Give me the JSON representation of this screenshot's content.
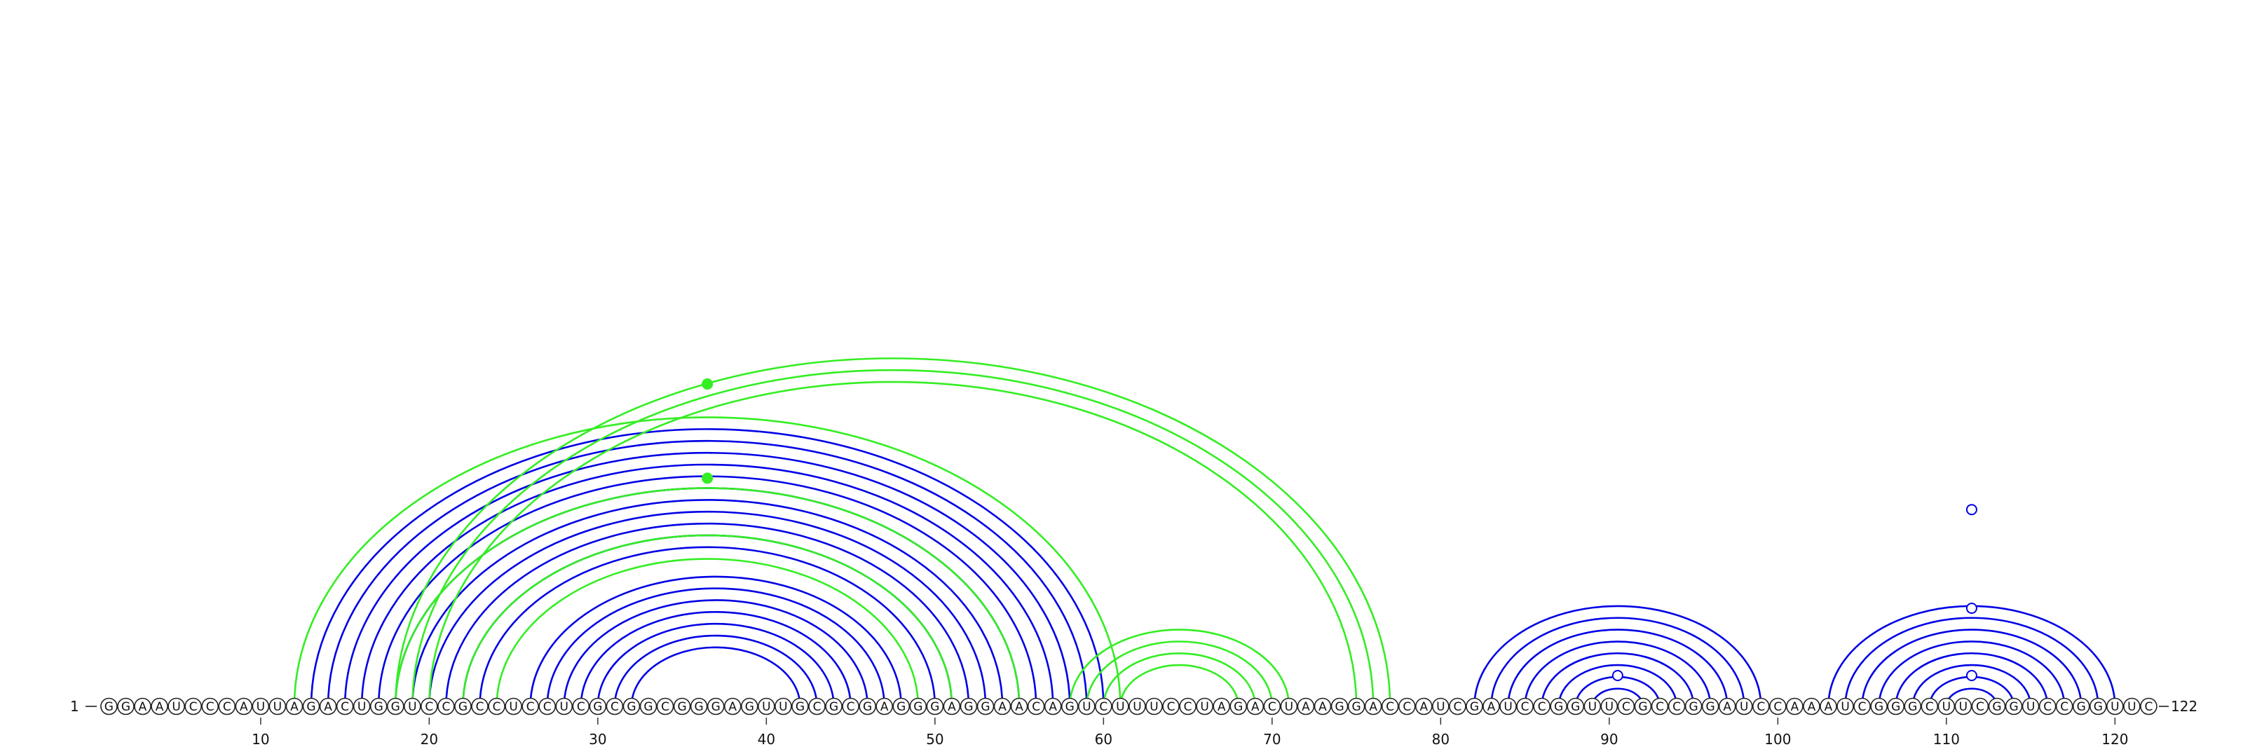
{
  "sequence": "GGAAUCCCAUUAGACUGGUCCGCCUCCUCGCGGCGGGAGUUGCGCGAGGGAGGAACAGUCUUUCCUAGACUAAGGACCAUCGAUCCGGUUCGCCGGAUCCAAAUCGGGCUUCGGUCCGGUUC",
  "start_label": "1",
  "end_label": "122",
  "ticks": [
    {
      "pos": 10,
      "label": "10"
    },
    {
      "pos": 20,
      "label": "20"
    },
    {
      "pos": 30,
      "label": "30"
    },
    {
      "pos": 40,
      "label": "40"
    },
    {
      "pos": 50,
      "label": "50"
    },
    {
      "pos": 60,
      "label": "60"
    },
    {
      "pos": 70,
      "label": "70"
    },
    {
      "pos": 80,
      "label": "80"
    },
    {
      "pos": 90,
      "label": "90"
    },
    {
      "pos": 100,
      "label": "100"
    },
    {
      "pos": 110,
      "label": "110"
    },
    {
      "pos": 120,
      "label": "120"
    }
  ],
  "colors": {
    "structure_a": "#0000e6",
    "structure_b": "#33ee22"
  },
  "arcs": [
    {
      "i": 13,
      "j": 60,
      "color": "structure_a"
    },
    {
      "i": 14,
      "j": 59,
      "color": "structure_a"
    },
    {
      "i": 15,
      "j": 58,
      "color": "structure_a"
    },
    {
      "i": 16,
      "j": 57,
      "color": "structure_a"
    },
    {
      "i": 17,
      "j": 56,
      "color": "structure_a"
    },
    {
      "i": 18,
      "j": 55,
      "color": "structure_a"
    },
    {
      "i": 19,
      "j": 54,
      "color": "structure_a"
    },
    {
      "i": 20,
      "j": 53,
      "color": "structure_a"
    },
    {
      "i": 21,
      "j": 52,
      "color": "structure_a"
    },
    {
      "i": 22,
      "j": 51,
      "color": "structure_a"
    },
    {
      "i": 23,
      "j": 50,
      "color": "structure_a"
    },
    {
      "i": 26,
      "j": 48,
      "color": "structure_a"
    },
    {
      "i": 27,
      "j": 47,
      "color": "structure_a"
    },
    {
      "i": 28,
      "j": 46,
      "color": "structure_a"
    },
    {
      "i": 29,
      "j": 45,
      "color": "structure_a"
    },
    {
      "i": 30,
      "j": 44,
      "color": "structure_a"
    },
    {
      "i": 31,
      "j": 43,
      "color": "structure_a"
    },
    {
      "i": 32,
      "j": 42,
      "color": "structure_a"
    },
    {
      "i": 82,
      "j": 99,
      "color": "structure_a"
    },
    {
      "i": 83,
      "j": 98,
      "color": "structure_a"
    },
    {
      "i": 84,
      "j": 97,
      "color": "structure_a"
    },
    {
      "i": 85,
      "j": 96,
      "color": "structure_a"
    },
    {
      "i": 86,
      "j": 95,
      "color": "structure_a"
    },
    {
      "i": 87,
      "j": 94,
      "color": "structure_a"
    },
    {
      "i": 88,
      "j": 93,
      "color": "structure_a"
    },
    {
      "i": 89,
      "j": 92,
      "color": "structure_a"
    },
    {
      "i": 103,
      "j": 120,
      "color": "structure_a"
    },
    {
      "i": 104,
      "j": 119,
      "color": "structure_a"
    },
    {
      "i": 105,
      "j": 118,
      "color": "structure_a"
    },
    {
      "i": 106,
      "j": 117,
      "color": "structure_a"
    },
    {
      "i": 107,
      "j": 116,
      "color": "structure_a"
    },
    {
      "i": 108,
      "j": 115,
      "color": "structure_a"
    },
    {
      "i": 109,
      "j": 114,
      "color": "structure_a"
    },
    {
      "i": 110,
      "j": 113,
      "color": "structure_a"
    },
    {
      "i": 12,
      "j": 61,
      "color": "structure_b"
    },
    {
      "i": 18,
      "j": 55,
      "color": "structure_b"
    },
    {
      "i": 22,
      "j": 51,
      "color": "structure_b"
    },
    {
      "i": 24,
      "j": 49,
      "color": "structure_b"
    },
    {
      "i": 18,
      "j": 77,
      "color": "structure_b"
    },
    {
      "i": 19,
      "j": 76,
      "color": "structure_b"
    },
    {
      "i": 20,
      "j": 75,
      "color": "structure_b"
    },
    {
      "i": 58,
      "j": 71,
      "color": "structure_b"
    },
    {
      "i": 59,
      "j": 70,
      "color": "structure_b"
    },
    {
      "i": 60,
      "j": 69,
      "color": "structure_b"
    },
    {
      "i": 61,
      "j": 68,
      "color": "structure_b"
    }
  ],
  "markers": [
    {
      "x": 36.5,
      "level": 0.7,
      "color": "structure_b",
      "filled": true
    },
    {
      "x": 36.5,
      "level": 0.49,
      "color": "structure_b",
      "filled": true
    },
    {
      "x": 90.5,
      "level": 0.05,
      "color": "structure_a",
      "filled": false
    },
    {
      "x": 111.5,
      "level": 0.42,
      "color": "structure_a",
      "filled": false
    },
    {
      "x": 111.5,
      "level": 0.2,
      "color": "structure_a",
      "filled": false
    },
    {
      "x": 111.5,
      "level": 0.05,
      "color": "structure_a",
      "filled": false
    }
  ]
}
